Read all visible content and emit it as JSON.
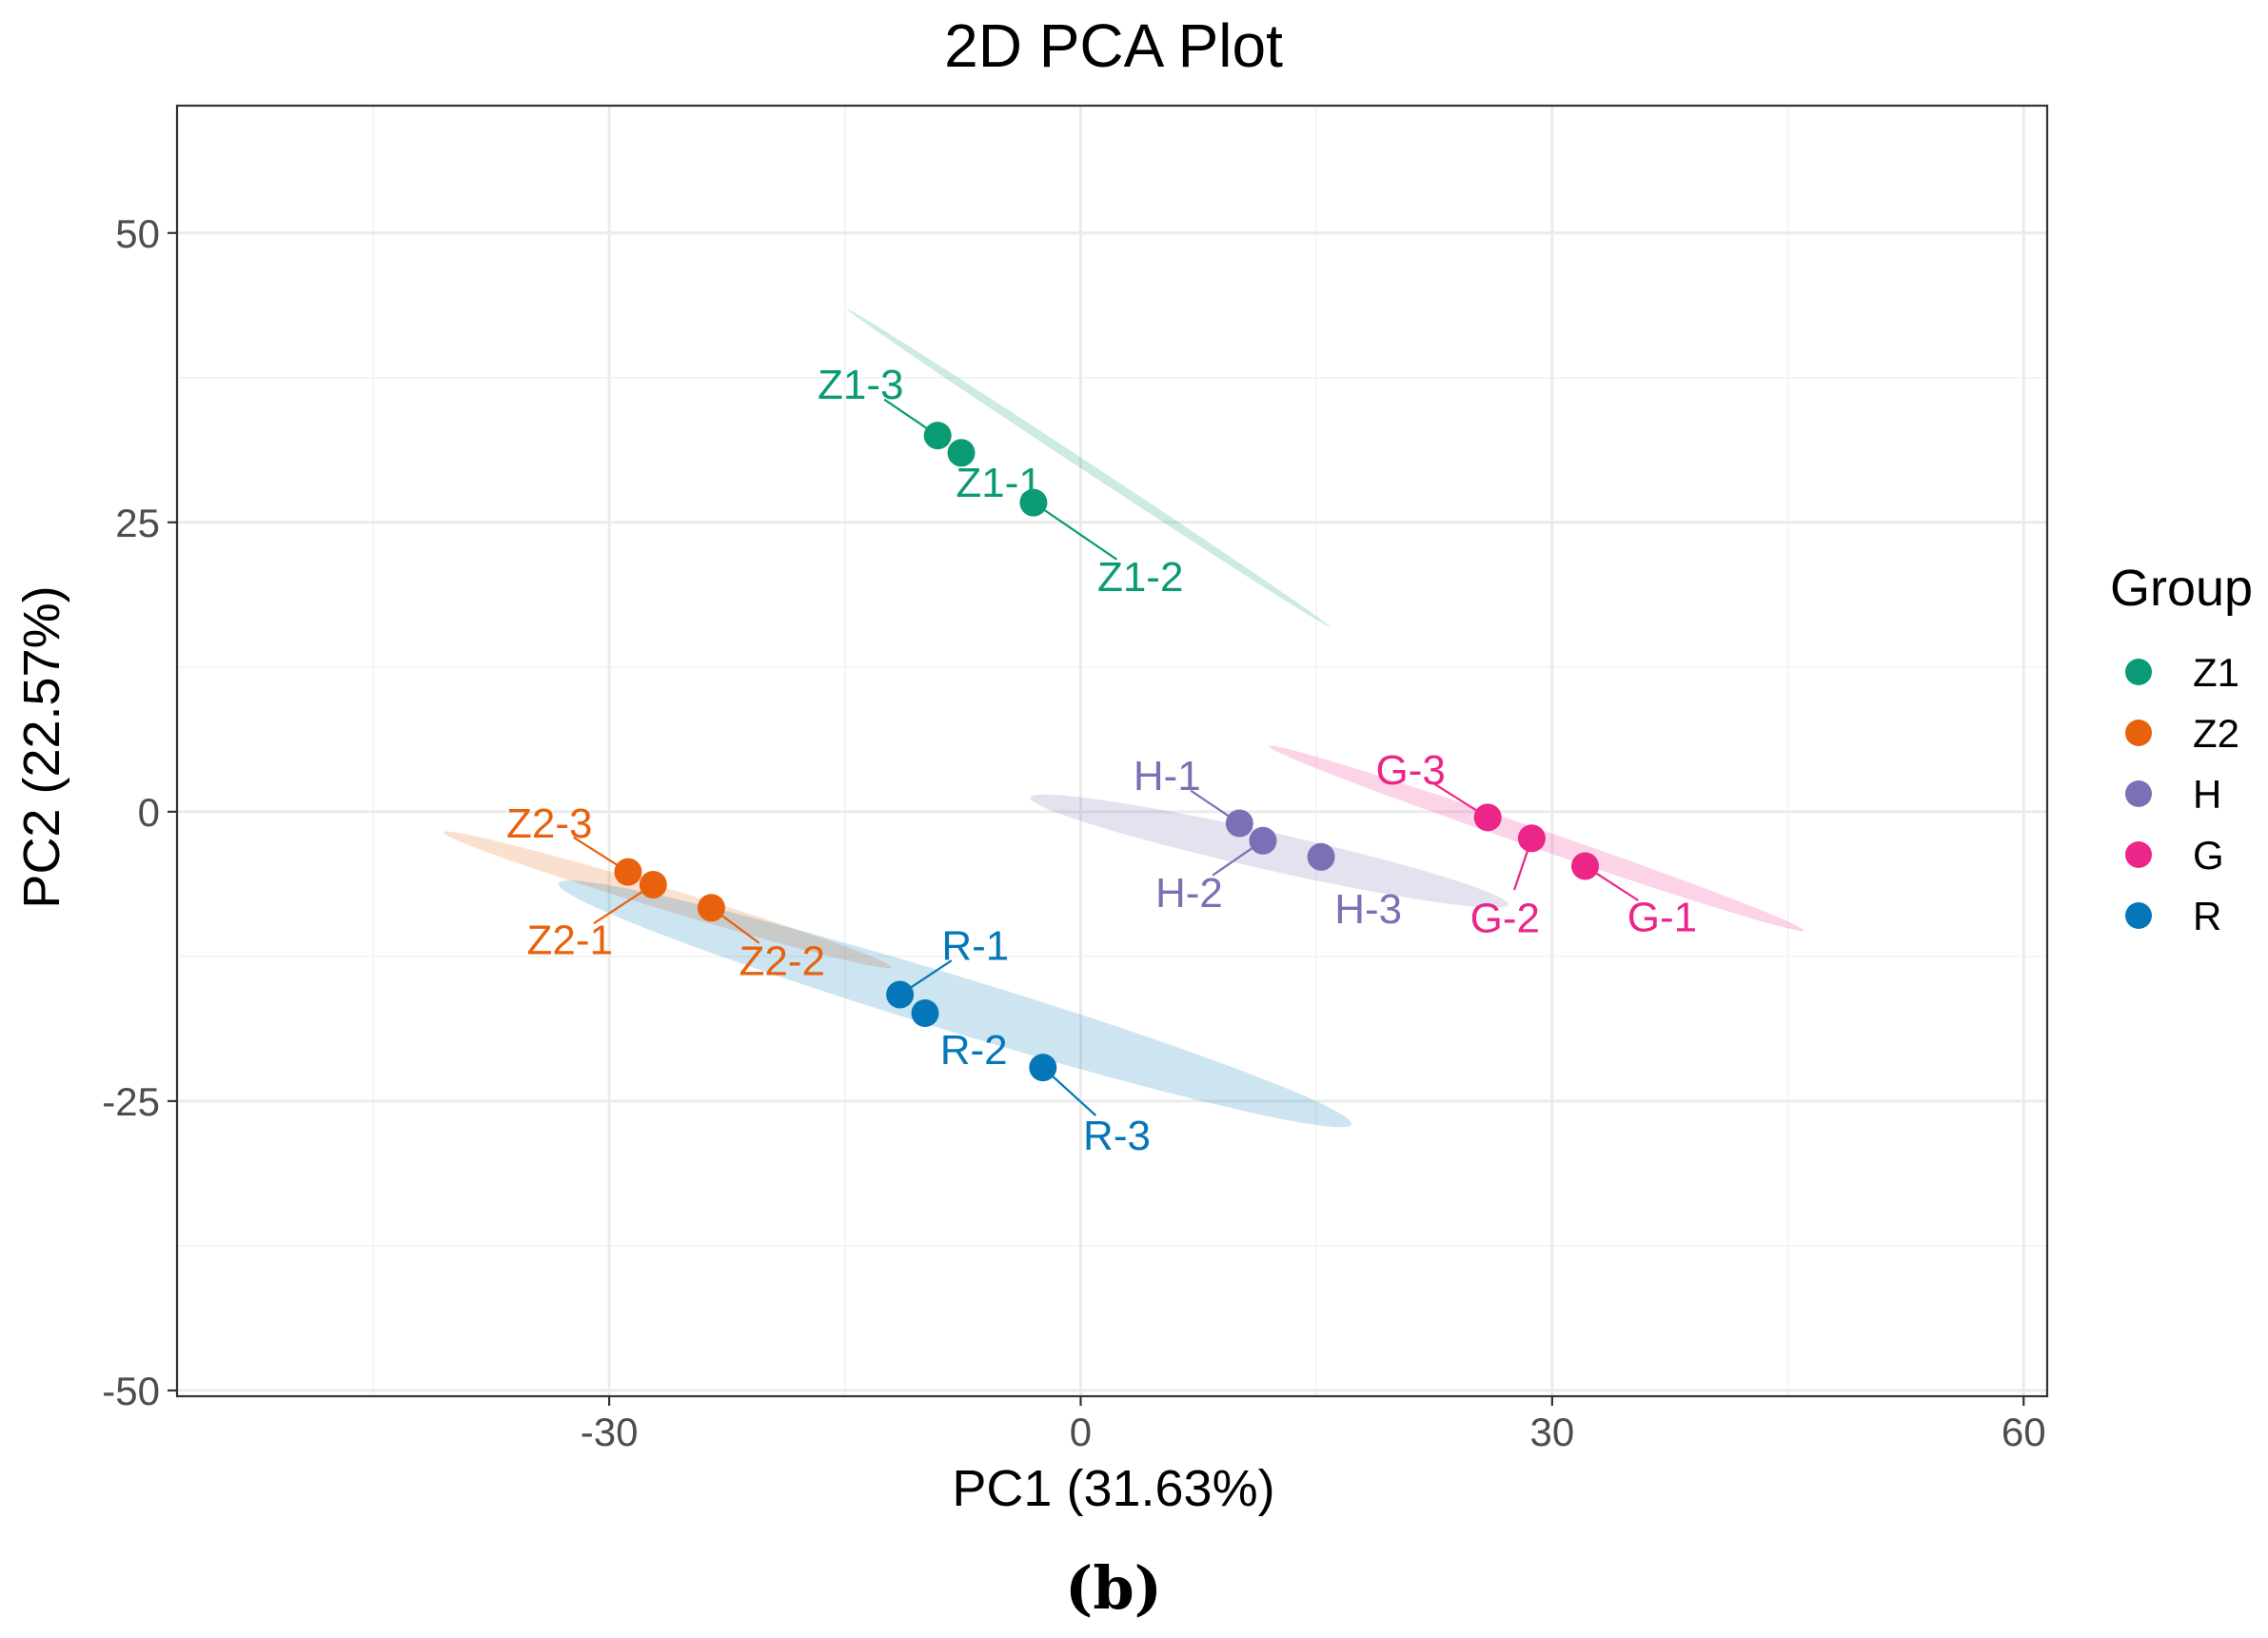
{
  "chart_data": {
    "type": "scatter",
    "title": "2D PCA Plot",
    "xlabel": "PC1 (31.63%)",
    "ylabel": "PC2 (22.57%)",
    "xlim": [
      -57.5,
      61.5
    ],
    "ylim": [
      -50.5,
      61.0
    ],
    "x_ticks": [
      -30,
      0,
      30,
      60
    ],
    "y_ticks": [
      -50,
      -25,
      0,
      25,
      50
    ],
    "x_tick_labels": [
      "-30",
      "0",
      "30",
      "60"
    ],
    "y_tick_labels": [
      "-50",
      "-25",
      "0",
      "25",
      "50"
    ],
    "grid": true,
    "legend": {
      "title": "Group",
      "position": "right",
      "entries": [
        "Z1",
        "Z2",
        "H",
        "G",
        "R"
      ]
    },
    "series": [
      {
        "name": "Z1",
        "color": "#0a9b74",
        "ellipse": {
          "center": [
            0.5,
            29.7
          ],
          "semi_major": 20.6,
          "semi_minor": 0.35,
          "angle_deg": -41.8
        },
        "points": [
          {
            "label": "Z1-1",
            "x": -7.6,
            "y": 31.0,
            "label_x": -5.2,
            "label_y": 28.5
          },
          {
            "label": "Z1-2",
            "x": -3.0,
            "y": 26.7,
            "label_x": 3.8,
            "label_y": 20.4
          },
          {
            "label": "Z1-3",
            "x": -9.1,
            "y": 32.5,
            "label_x": -14.0,
            "label_y": 37.0
          }
        ]
      },
      {
        "name": "Z2",
        "color": "#e8620d",
        "ellipse": {
          "center": [
            -26.3,
            -7.6
          ],
          "semi_major": 15.4,
          "semi_minor": 0.9,
          "angle_deg": -22.3
        },
        "points": [
          {
            "label": "Z2-1",
            "x": -27.2,
            "y": -6.3,
            "label_x": -32.5,
            "label_y": -11.0
          },
          {
            "label": "Z2-2",
            "x": -23.5,
            "y": -8.3,
            "label_x": -19.0,
            "label_y": -12.8
          },
          {
            "label": "Z2-3",
            "x": -28.8,
            "y": -5.2,
            "label_x": -33.8,
            "label_y": -0.9
          }
        ]
      },
      {
        "name": "H",
        "color": "#7d6fb5",
        "ellipse": {
          "center": [
            12.0,
            -3.4
          ],
          "semi_major": 15.9,
          "semi_minor": 1.6,
          "angle_deg": -17.0
        },
        "points": [
          {
            "label": "H-1",
            "x": 10.1,
            "y": -1.0,
            "label_x": 5.5,
            "label_y": 3.2
          },
          {
            "label": "H-2",
            "x": 11.6,
            "y": -2.5,
            "label_x": 6.9,
            "label_y": -6.9
          },
          {
            "label": "H-3",
            "x": 15.3,
            "y": -3.9,
            "label_x": 18.3,
            "label_y": -8.3
          }
        ]
      },
      {
        "name": "G",
        "color": "#eb2688",
        "ellipse": {
          "center": [
            29.0,
            -2.3
          ],
          "semi_major": 18.8,
          "semi_minor": 0.8,
          "angle_deg": -25.1
        },
        "points": [
          {
            "label": "G-1",
            "x": 32.1,
            "y": -4.7,
            "label_x": 37.0,
            "label_y": -9.0
          },
          {
            "label": "G-2",
            "x": 28.7,
            "y": -2.3,
            "label_x": 27.0,
            "label_y": -9.1
          },
          {
            "label": "G-3",
            "x": 25.9,
            "y": -0.5,
            "label_x": 21.0,
            "label_y": 3.7
          }
        ]
      },
      {
        "name": "R",
        "color": "#0577b8",
        "ellipse": {
          "center": [
            -8.0,
            -16.6
          ],
          "semi_major": 27.3,
          "semi_minor": 2.3,
          "angle_deg": -22.5
        },
        "points": [
          {
            "label": "R-1",
            "x": -11.5,
            "y": -15.8,
            "label_x": -6.7,
            "label_y": -11.5
          },
          {
            "label": "R-2",
            "x": -9.9,
            "y": -17.4,
            "label_x": -6.8,
            "label_y": -20.5
          },
          {
            "label": "R-3",
            "x": -2.4,
            "y": -22.1,
            "label_x": 2.3,
            "label_y": -27.9
          }
        ]
      }
    ],
    "caption": "(b)"
  }
}
